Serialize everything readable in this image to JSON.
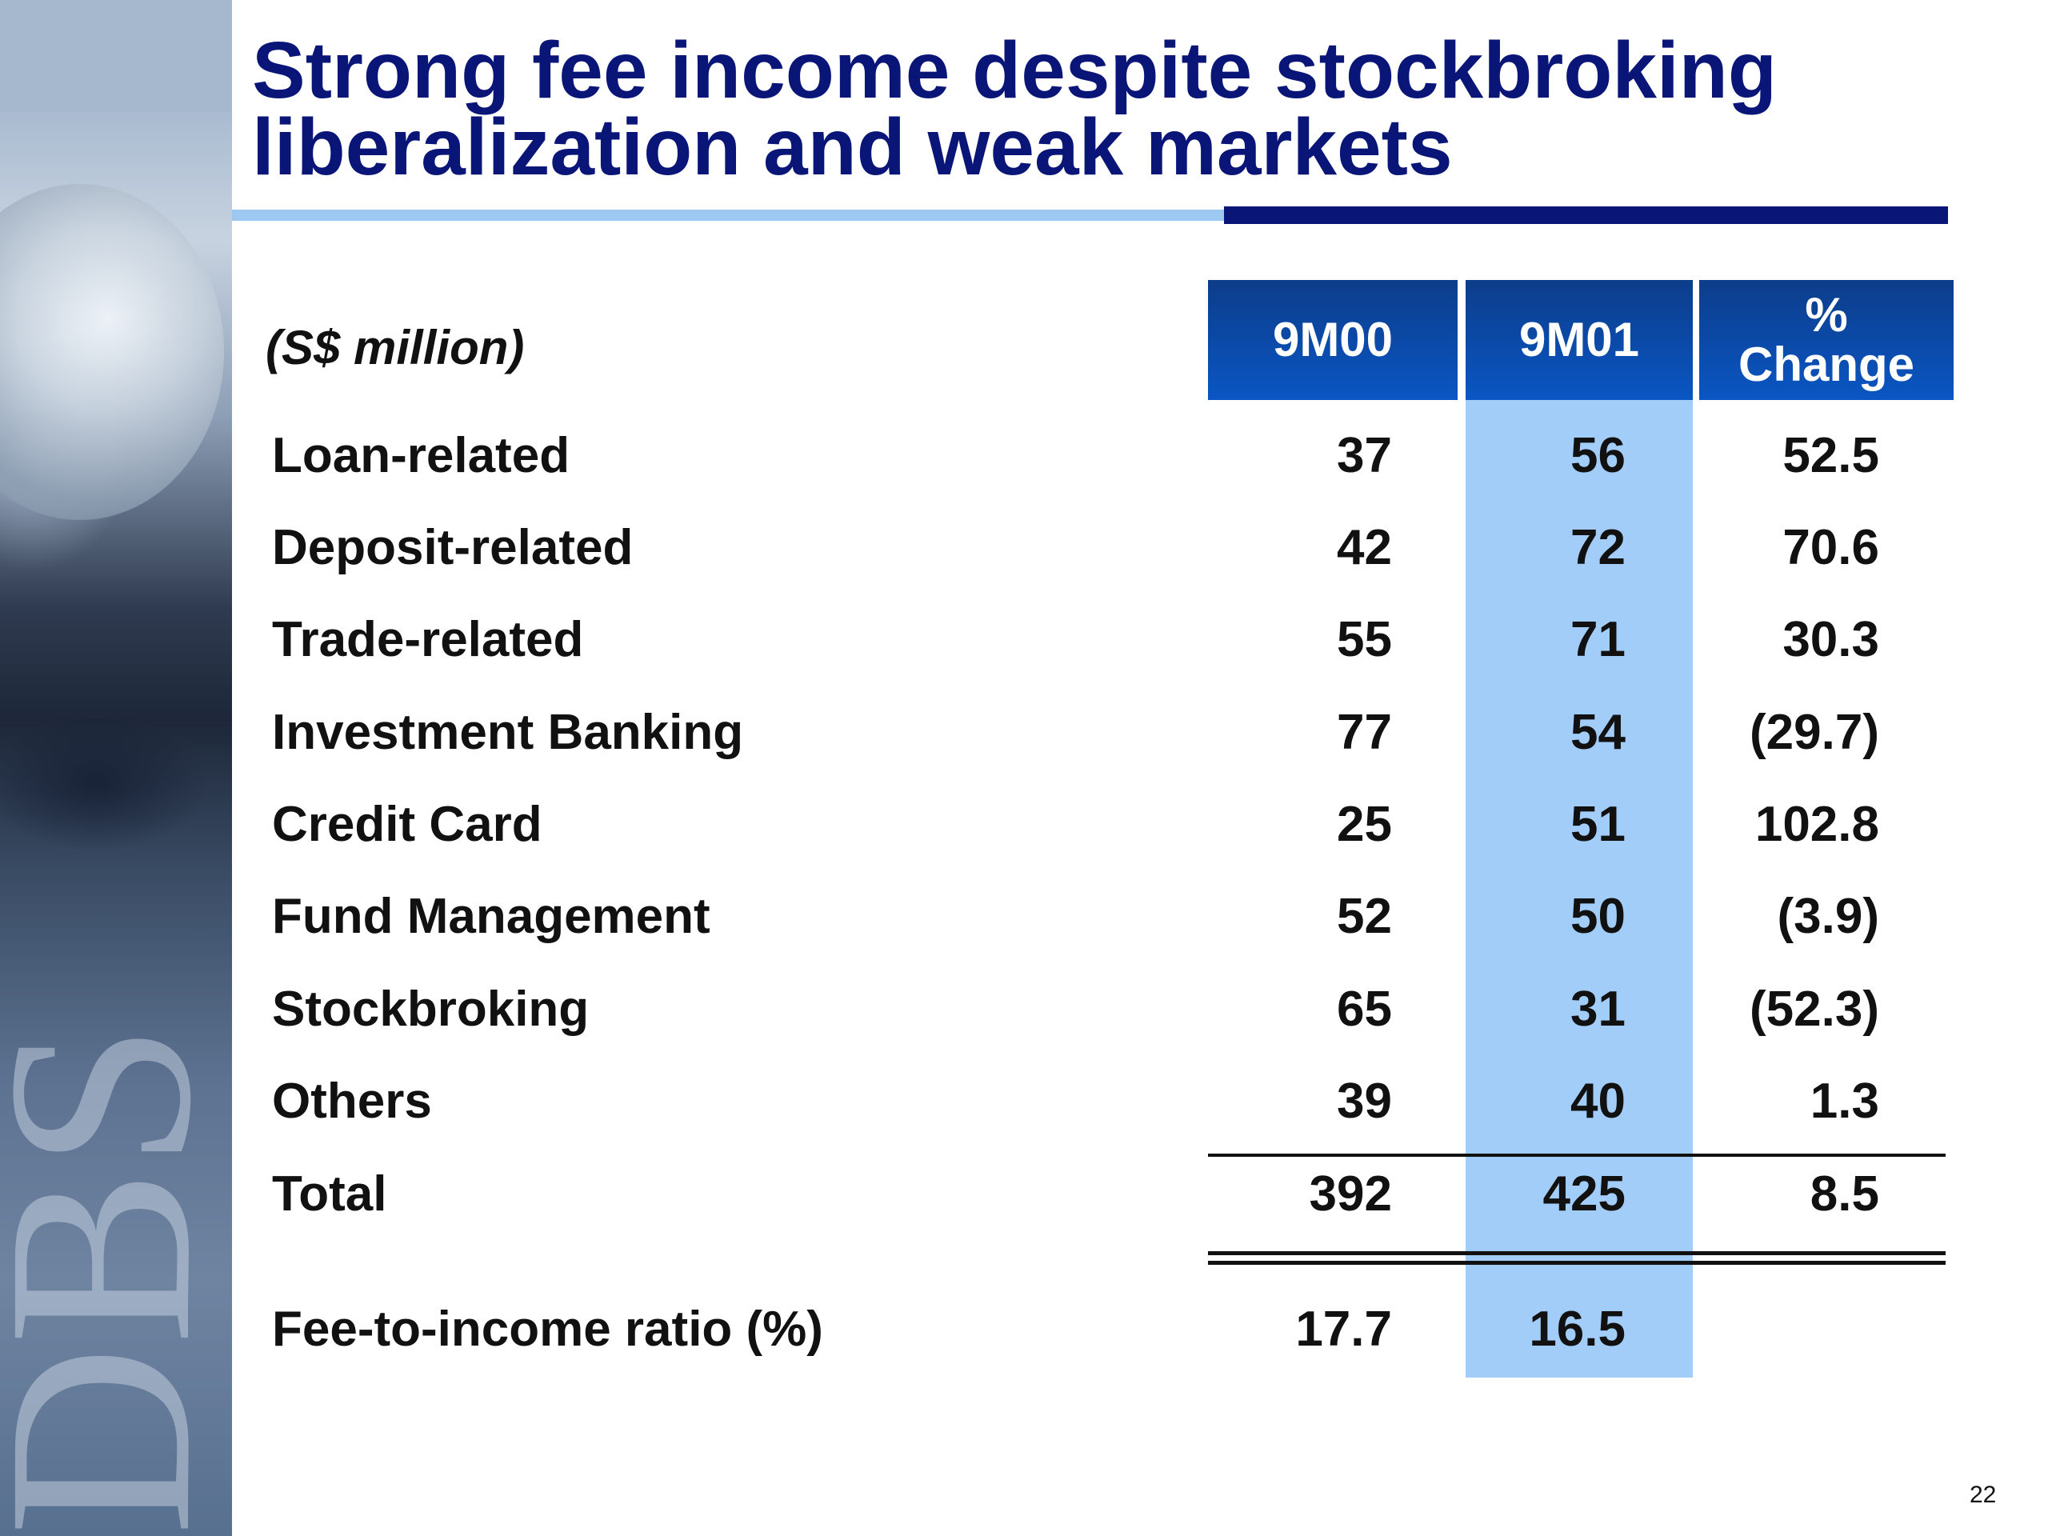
{
  "slide": {
    "title_line1": "Strong fee income despite stockbroking",
    "title_line2": "liberalization and weak markets",
    "page_number": "22"
  },
  "table": {
    "unit_label": "(S$ million)",
    "columns": [
      "9M00",
      "9M01"
    ],
    "change_header_line1": "%",
    "change_header_line2": "Change",
    "rows": [
      {
        "label": "Loan-related",
        "v9m00": "37",
        "v9m01": "56",
        "change": "52.5"
      },
      {
        "label": "Deposit-related",
        "v9m00": "42",
        "v9m01": "72",
        "change": "70.6"
      },
      {
        "label": "Trade-related",
        "v9m00": "55",
        "v9m01": "71",
        "change": "30.3"
      },
      {
        "label": "Investment Banking",
        "v9m00": "77",
        "v9m01": "54",
        "change": "(29.7)"
      },
      {
        "label": "Credit Card",
        "v9m00": "25",
        "v9m01": "51",
        "change": "102.8"
      },
      {
        "label": "Fund Management",
        "v9m00": "52",
        "v9m01": "50",
        "change": "(3.9)"
      },
      {
        "label": "Stockbroking",
        "v9m00": "65",
        "v9m01": "31",
        "change": "(52.3)"
      },
      {
        "label": "Others",
        "v9m00": "39",
        "v9m01": "40",
        "change": "1.3"
      }
    ],
    "total": {
      "label": "Total",
      "v9m00": "392",
      "v9m01": "425",
      "change": "8.5"
    },
    "ratio": {
      "label": "Fee-to-income ratio (%)",
      "v9m00": "17.7",
      "v9m01": "16.5"
    }
  },
  "colors": {
    "title": "#0a1578",
    "header_bg": "#0a56c4",
    "highlight_column": "#a3cdf9",
    "rule_light": "#9dc8f2"
  }
}
